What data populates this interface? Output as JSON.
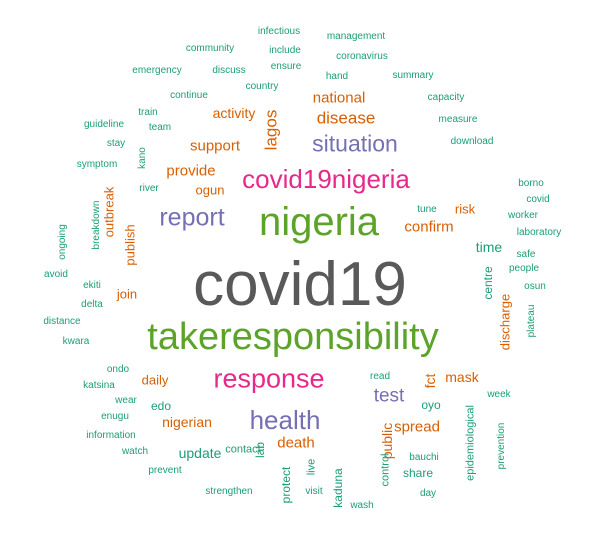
{
  "palette": {
    "dark_gray": "#595959",
    "green": "#5ca32a",
    "magenta": "#e7298a",
    "purple": "#7570b3",
    "orange": "#d95f02",
    "teal": "#1b9e77"
  },
  "words": [
    {
      "text": "covid19",
      "color": "dark_gray",
      "vertical": false
    },
    {
      "text": "takeresponsibility",
      "color": "green",
      "vertical": false
    },
    {
      "text": "nigeria",
      "color": "green",
      "vertical": false
    },
    {
      "text": "covid19nigeria",
      "color": "magenta",
      "vertical": false
    },
    {
      "text": "response",
      "color": "magenta",
      "vertical": false
    },
    {
      "text": "report",
      "color": "purple",
      "vertical": false
    },
    {
      "text": "health",
      "color": "purple",
      "vertical": false
    },
    {
      "text": "situation",
      "color": "purple",
      "vertical": false
    },
    {
      "text": "test",
      "color": "purple",
      "vertical": false
    },
    {
      "text": "disease",
      "color": "orange",
      "vertical": false
    },
    {
      "text": "lagos",
      "color": "orange",
      "vertical": true
    },
    {
      "text": "confirm",
      "color": "orange",
      "vertical": false
    },
    {
      "text": "provide",
      "color": "orange",
      "vertical": false
    },
    {
      "text": "support",
      "color": "orange",
      "vertical": false
    },
    {
      "text": "national",
      "color": "orange",
      "vertical": false
    },
    {
      "text": "activity",
      "color": "orange",
      "vertical": false
    },
    {
      "text": "spread",
      "color": "orange",
      "vertical": false
    },
    {
      "text": "mask",
      "color": "orange",
      "vertical": false
    },
    {
      "text": "death",
      "color": "orange",
      "vertical": false
    },
    {
      "text": "nigerian",
      "color": "orange",
      "vertical": false
    },
    {
      "text": "daily",
      "color": "orange",
      "vertical": false
    },
    {
      "text": "join",
      "color": "orange",
      "vertical": false
    },
    {
      "text": "ogun",
      "color": "orange",
      "vertical": false
    },
    {
      "text": "risk",
      "color": "orange",
      "vertical": false
    },
    {
      "text": "fct",
      "color": "orange",
      "vertical": true
    },
    {
      "text": "publish",
      "color": "orange",
      "vertical": true
    },
    {
      "text": "outbreak",
      "color": "orange",
      "vertical": true
    },
    {
      "text": "discharge",
      "color": "orange",
      "vertical": true
    },
    {
      "text": "public",
      "color": "orange",
      "vertical": true
    },
    {
      "text": "infectious",
      "color": "teal",
      "vertical": false
    },
    {
      "text": "management",
      "color": "teal",
      "vertical": false
    },
    {
      "text": "community",
      "color": "teal",
      "vertical": false
    },
    {
      "text": "include",
      "color": "teal",
      "vertical": false
    },
    {
      "text": "coronavirus",
      "color": "teal",
      "vertical": false
    },
    {
      "text": "emergency",
      "color": "teal",
      "vertical": false
    },
    {
      "text": "discuss",
      "color": "teal",
      "vertical": false
    },
    {
      "text": "ensure",
      "color": "teal",
      "vertical": false
    },
    {
      "text": "hand",
      "color": "teal",
      "vertical": false
    },
    {
      "text": "summary",
      "color": "teal",
      "vertical": false
    },
    {
      "text": "country",
      "color": "teal",
      "vertical": false
    },
    {
      "text": "continue",
      "color": "teal",
      "vertical": false
    },
    {
      "text": "capacity",
      "color": "teal",
      "vertical": false
    },
    {
      "text": "train",
      "color": "teal",
      "vertical": false
    },
    {
      "text": "guideline",
      "color": "teal",
      "vertical": false
    },
    {
      "text": "team",
      "color": "teal",
      "vertical": false
    },
    {
      "text": "measure",
      "color": "teal",
      "vertical": false
    },
    {
      "text": "stay",
      "color": "teal",
      "vertical": false
    },
    {
      "text": "download",
      "color": "teal",
      "vertical": false
    },
    {
      "text": "symptom",
      "color": "teal",
      "vertical": false
    },
    {
      "text": "kano",
      "color": "teal",
      "vertical": true
    },
    {
      "text": "river",
      "color": "teal",
      "vertical": false
    },
    {
      "text": "borno",
      "color": "teal",
      "vertical": false
    },
    {
      "text": "covid",
      "color": "teal",
      "vertical": false
    },
    {
      "text": "worker",
      "color": "teal",
      "vertical": false
    },
    {
      "text": "laboratory",
      "color": "teal",
      "vertical": false
    },
    {
      "text": "tune",
      "color": "teal",
      "vertical": false
    },
    {
      "text": "breakdown",
      "color": "teal",
      "vertical": true
    },
    {
      "text": "ongoing",
      "color": "teal",
      "vertical": true
    },
    {
      "text": "time",
      "color": "teal",
      "vertical": false
    },
    {
      "text": "safe",
      "color": "teal",
      "vertical": false
    },
    {
      "text": "people",
      "color": "teal",
      "vertical": false
    },
    {
      "text": "osun",
      "color": "teal",
      "vertical": false
    },
    {
      "text": "avoid",
      "color": "teal",
      "vertical": false
    },
    {
      "text": "ekiti",
      "color": "teal",
      "vertical": false
    },
    {
      "text": "delta",
      "color": "teal",
      "vertical": false
    },
    {
      "text": "centre",
      "color": "teal",
      "vertical": true
    },
    {
      "text": "plateau",
      "color": "teal",
      "vertical": true
    },
    {
      "text": "distance",
      "color": "teal",
      "vertical": false
    },
    {
      "text": "kwara",
      "color": "teal",
      "vertical": false
    },
    {
      "text": "ondo",
      "color": "teal",
      "vertical": false
    },
    {
      "text": "katsina",
      "color": "teal",
      "vertical": false
    },
    {
      "text": "read",
      "color": "teal",
      "vertical": false
    },
    {
      "text": "wear",
      "color": "teal",
      "vertical": false
    },
    {
      "text": "edo",
      "color": "teal",
      "vertical": false
    },
    {
      "text": "oyo",
      "color": "teal",
      "vertical": false
    },
    {
      "text": "week",
      "color": "teal",
      "vertical": false
    },
    {
      "text": "enugu",
      "color": "teal",
      "vertical": false
    },
    {
      "text": "information",
      "color": "teal",
      "vertical": false
    },
    {
      "text": "watch",
      "color": "teal",
      "vertical": false
    },
    {
      "text": "update",
      "color": "teal",
      "vertical": false
    },
    {
      "text": "lab",
      "color": "teal",
      "vertical": true
    },
    {
      "text": "prevent",
      "color": "teal",
      "vertical": false
    },
    {
      "text": "contact",
      "color": "teal",
      "vertical": false
    },
    {
      "text": "strengthen",
      "color": "teal",
      "vertical": false
    },
    {
      "text": "protect",
      "color": "teal",
      "vertical": true
    },
    {
      "text": "live",
      "color": "teal",
      "vertical": true
    },
    {
      "text": "visit",
      "color": "teal",
      "vertical": false
    },
    {
      "text": "kaduna",
      "color": "teal",
      "vertical": true
    },
    {
      "text": "control",
      "color": "teal",
      "vertical": true
    },
    {
      "text": "bauchi",
      "color": "teal",
      "vertical": false
    },
    {
      "text": "share",
      "color": "teal",
      "vertical": false
    },
    {
      "text": "day",
      "color": "teal",
      "vertical": false
    },
    {
      "text": "wash",
      "color": "teal",
      "vertical": false
    },
    {
      "text": "epidemiological",
      "color": "teal",
      "vertical": true
    },
    {
      "text": "prevention",
      "color": "teal",
      "vertical": true
    }
  ]
}
